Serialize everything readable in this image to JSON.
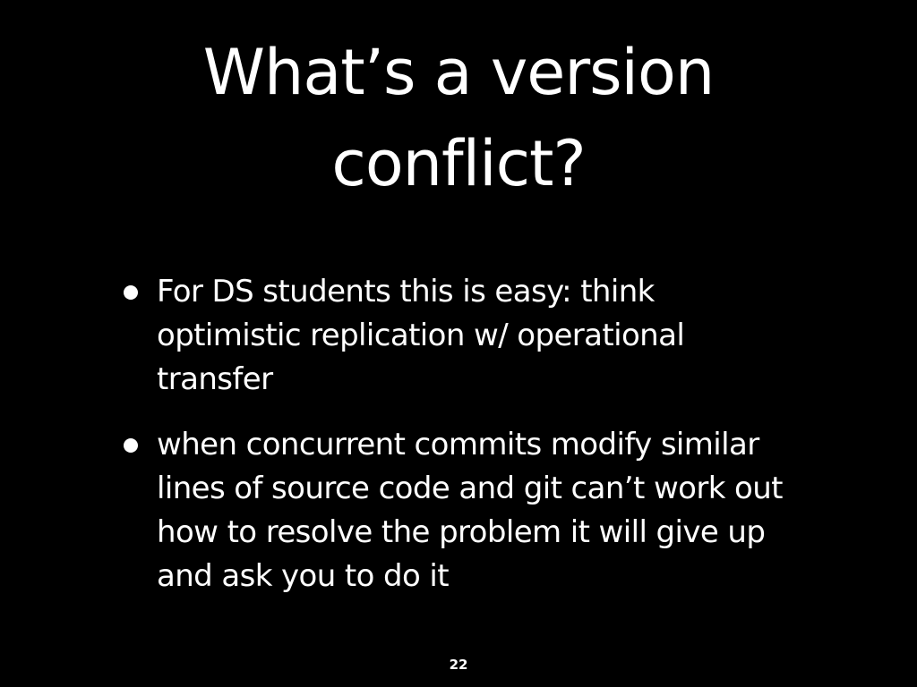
{
  "slide": {
    "title_lines": [
      "What’s a version",
      "conflict?"
    ],
    "bullets": [
      {
        "lines": [
          "For DS students this is easy: think",
          "optimistic replication w/ operational",
          "transfer"
        ]
      },
      {
        "lines": [
          "when concurrent commits modify similar",
          "lines of source code and git can’t work out",
          "how to resolve the problem it will give up",
          "and ask you to do it"
        ]
      }
    ],
    "page_number": "22"
  },
  "colors": {
    "background": "#000000",
    "text": "#ffffff"
  }
}
